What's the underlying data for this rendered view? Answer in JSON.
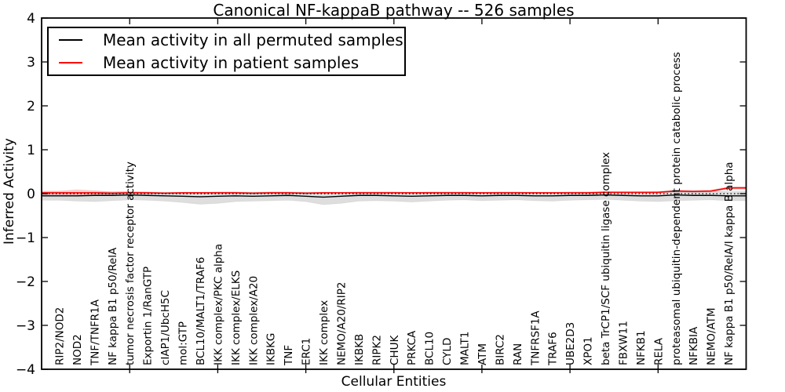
{
  "figure": {
    "title": "Canonical NF-kappaB pathway -- 526 samples",
    "xlabel": "Cellular Entities",
    "ylabel": "Inferred Activity"
  },
  "legend": {
    "items": [
      {
        "label": "Mean activity in all permuted samples",
        "color": "#000000"
      },
      {
        "label": "Mean activity in patient samples",
        "color": "#ff0000"
      }
    ]
  },
  "chart_data": {
    "type": "line",
    "title": "Canonical NF-kappaB pathway -- 526 samples",
    "xlabel": "Cellular Entities",
    "ylabel": "Inferred Activity",
    "ylim": [
      -4,
      4
    ],
    "yticks": [
      4,
      3,
      2,
      1,
      0,
      -1,
      -2,
      -3,
      -4
    ],
    "grid": false,
    "legend_position": "upper left",
    "categories": [
      "RIP2/NOD2",
      "NOD2",
      "TNF/TNFR1A",
      "NF kappa B1 p50/RelA",
      "tumor necrosis factor receptor activity",
      "Exportin 1/RanGTP",
      "cIAP1/UbcH5C",
      "mol:GTP",
      "BCL10/MALT1/TRAF6",
      "IKK complex/PKC alpha",
      "IKK complex/ELKS",
      "IKK complex/A20",
      "IKBKG",
      "TNF",
      "ERC1",
      "IKK complex",
      "NEMO/A20/RIP2",
      "IKBKB",
      "RIPK2",
      "CHUK",
      "PRKCA",
      "BCL10",
      "CYLD",
      "MALT1",
      "ATM",
      "BIRC2",
      "RAN",
      "TNFRSF1A",
      "TRAF6",
      "UBE2D3",
      "XPO1",
      "beta TrCP1/SCF ubiquitin ligase complex",
      "FBXW11",
      "NFKB1",
      "RELA",
      "proteasomal ubiquitin-dependent protein catabolic process",
      "NFKBIA",
      "NEMO/ATM",
      "NF kappa B1 p50/RelA/I kappa B alpha"
    ],
    "series": [
      {
        "name": "Mean activity in all permuted samples",
        "color": "#000000",
        "style": "solid",
        "values": [
          -0.05,
          -0.05,
          -0.04,
          -0.04,
          -0.03,
          -0.04,
          -0.05,
          -0.06,
          -0.07,
          -0.06,
          -0.05,
          -0.06,
          -0.05,
          -0.04,
          -0.06,
          -0.08,
          -0.06,
          -0.04,
          -0.04,
          -0.05,
          -0.06,
          -0.05,
          -0.04,
          -0.04,
          -0.05,
          -0.04,
          -0.04,
          -0.05,
          -0.05,
          -0.04,
          -0.04,
          -0.03,
          -0.04,
          -0.05,
          -0.05,
          -0.03,
          -0.04,
          -0.04,
          -0.05
        ]
      },
      {
        "name": "Mean activity in patient samples",
        "color": "#ff0000",
        "style": "solid",
        "values": [
          0.02,
          0.02,
          0.02,
          0.01,
          0.02,
          0.02,
          0.01,
          0.02,
          0.02,
          0.02,
          0.02,
          0.01,
          0.02,
          0.02,
          0.01,
          0.02,
          0.02,
          0.02,
          0.02,
          0.02,
          0.02,
          0.02,
          0.02,
          0.02,
          0.02,
          0.02,
          0.02,
          0.02,
          0.02,
          0.02,
          0.02,
          0.03,
          0.03,
          0.03,
          0.03,
          0.06,
          0.05,
          0.06,
          0.13
        ]
      }
    ],
    "bands": [
      {
        "name": "permuted-samples-range",
        "color": "rgba(0,0,0,0.13)",
        "upper": [
          0.04,
          0.03,
          0.04,
          0.04,
          0.05,
          0.04,
          0.03,
          0.03,
          0.03,
          0.04,
          0.04,
          0.03,
          0.04,
          0.04,
          0.03,
          0.03,
          0.03,
          0.04,
          0.04,
          0.04,
          0.03,
          0.04,
          0.04,
          0.04,
          0.03,
          0.04,
          0.04,
          0.03,
          0.03,
          0.04,
          0.04,
          0.05,
          0.04,
          0.03,
          0.04,
          0.08,
          0.06,
          0.06,
          0.05
        ],
        "lower": [
          -0.15,
          -0.17,
          -0.18,
          -0.16,
          -0.14,
          -0.15,
          -0.17,
          -0.2,
          -0.24,
          -0.22,
          -0.18,
          -0.17,
          -0.16,
          -0.15,
          -0.18,
          -0.25,
          -0.22,
          -0.17,
          -0.16,
          -0.17,
          -0.19,
          -0.17,
          -0.15,
          -0.14,
          -0.16,
          -0.15,
          -0.14,
          -0.16,
          -0.17,
          -0.15,
          -0.14,
          -0.13,
          -0.15,
          -0.17,
          -0.18,
          -0.16,
          -0.15,
          -0.14,
          -0.16
        ]
      },
      {
        "name": "patient-samples-range",
        "color": "rgba(255,0,0,0.18)",
        "upper": [
          0.06,
          0.09,
          0.07,
          0.04,
          0.04,
          0.03,
          0.03,
          0.03,
          0.03,
          0.03,
          0.03,
          0.03,
          0.03,
          0.03,
          0.03,
          0.03,
          0.03,
          0.03,
          0.03,
          0.03,
          0.03,
          0.03,
          0.03,
          0.03,
          0.03,
          0.03,
          0.03,
          0.03,
          0.03,
          0.03,
          0.03,
          0.04,
          0.04,
          0.04,
          0.05,
          0.08,
          0.07,
          0.08,
          0.16
        ],
        "lower": [
          -0.03,
          -0.06,
          -0.04,
          -0.02,
          -0.01,
          0,
          0,
          0,
          0,
          0,
          0,
          0,
          0,
          0,
          0,
          0,
          0.01,
          0.01,
          0.01,
          0.01,
          0.01,
          0.01,
          0.01,
          0.01,
          0.01,
          0.01,
          0.01,
          0.01,
          0.01,
          0.01,
          0.01,
          0.02,
          0.02,
          0.02,
          0.02,
          0.04,
          0.03,
          0.04,
          0.1
        ]
      }
    ],
    "zero_line": {
      "style": "dotted",
      "color": "#000000",
      "y": 0
    }
  }
}
